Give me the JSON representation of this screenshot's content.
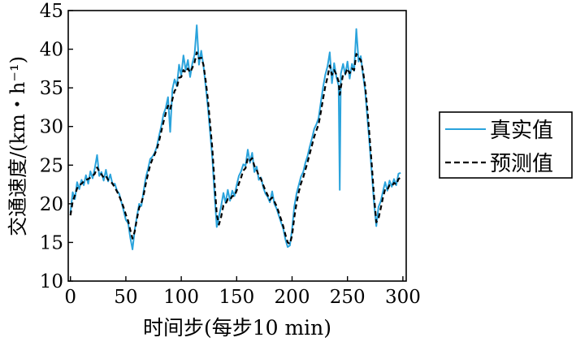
{
  "chart_data": {
    "type": "line",
    "xlabel": "时间步(每步10 min)",
    "ylabel": "交通速度/(km・h⁻¹)",
    "xlim": [
      -2,
      303
    ],
    "ylim": [
      10,
      45
    ],
    "xticks": [
      0,
      50,
      100,
      150,
      200,
      250,
      300
    ],
    "yticks": [
      10,
      15,
      20,
      25,
      30,
      35,
      40,
      45
    ],
    "legend_position": "right",
    "series": [
      {
        "name": "真实值",
        "color": "#2aa3dc",
        "style": "solid",
        "points": [
          [
            0,
            18.8
          ],
          [
            2,
            21.5
          ],
          [
            4,
            20.6
          ],
          [
            6,
            22.8
          ],
          [
            8,
            21.9
          ],
          [
            10,
            23.1
          ],
          [
            12,
            22.4
          ],
          [
            14,
            23.7
          ],
          [
            16,
            22.6
          ],
          [
            18,
            24.2
          ],
          [
            20,
            23.3
          ],
          [
            22,
            24.6
          ],
          [
            24,
            26.3
          ],
          [
            26,
            23.6
          ],
          [
            28,
            24.1
          ],
          [
            30,
            23.0
          ],
          [
            32,
            24.4
          ],
          [
            34,
            22.9
          ],
          [
            36,
            23.8
          ],
          [
            38,
            22.5
          ],
          [
            40,
            22.6
          ],
          [
            42,
            21.7
          ],
          [
            44,
            21.3
          ],
          [
            46,
            20.2
          ],
          [
            48,
            19.1
          ],
          [
            50,
            17.9
          ],
          [
            52,
            17.5
          ],
          [
            54,
            15.6
          ],
          [
            56,
            14.1
          ],
          [
            58,
            16.6
          ],
          [
            60,
            18.4
          ],
          [
            62,
            20.0
          ],
          [
            64,
            19.7
          ],
          [
            66,
            21.6
          ],
          [
            68,
            23.4
          ],
          [
            70,
            24.5
          ],
          [
            72,
            25.8
          ],
          [
            74,
            26.1
          ],
          [
            76,
            26.6
          ],
          [
            78,
            27.4
          ],
          [
            80,
            28.8
          ],
          [
            82,
            30.1
          ],
          [
            84,
            31.6
          ],
          [
            86,
            32.4
          ],
          [
            88,
            33.8
          ],
          [
            90,
            29.3
          ],
          [
            92,
            34.8
          ],
          [
            94,
            36.1
          ],
          [
            96,
            35.2
          ],
          [
            98,
            38.0
          ],
          [
            100,
            36.6
          ],
          [
            102,
            39.2
          ],
          [
            104,
            37.3
          ],
          [
            106,
            38.6
          ],
          [
            108,
            36.4
          ],
          [
            110,
            38.2
          ],
          [
            112,
            39.3
          ],
          [
            114,
            43.1
          ],
          [
            116,
            38.0
          ],
          [
            118,
            39.8
          ],
          [
            120,
            37.9
          ],
          [
            122,
            35.3
          ],
          [
            124,
            32.5
          ],
          [
            126,
            29.3
          ],
          [
            128,
            26.0
          ],
          [
            130,
            21.4
          ],
          [
            132,
            17.0
          ],
          [
            134,
            18.3
          ],
          [
            136,
            19.7
          ],
          [
            138,
            21.4
          ],
          [
            140,
            20.1
          ],
          [
            142,
            21.8
          ],
          [
            144,
            20.4
          ],
          [
            146,
            21.7
          ],
          [
            148,
            21.0
          ],
          [
            150,
            22.4
          ],
          [
            152,
            23.6
          ],
          [
            154,
            24.2
          ],
          [
            156,
            25.1
          ],
          [
            158,
            24.9
          ],
          [
            160,
            27.0
          ],
          [
            162,
            25.3
          ],
          [
            164,
            26.6
          ],
          [
            166,
            24.1
          ],
          [
            168,
            24.8
          ],
          [
            170,
            23.1
          ],
          [
            172,
            23.4
          ],
          [
            174,
            22.1
          ],
          [
            176,
            21.3
          ],
          [
            178,
            20.9
          ],
          [
            180,
            20.2
          ],
          [
            182,
            21.6
          ],
          [
            184,
            20.0
          ],
          [
            186,
            19.4
          ],
          [
            188,
            18.5
          ],
          [
            190,
            17.6
          ],
          [
            192,
            16.8
          ],
          [
            194,
            15.4
          ],
          [
            196,
            14.4
          ],
          [
            198,
            14.6
          ],
          [
            200,
            16.7
          ],
          [
            202,
            19.6
          ],
          [
            204,
            21.3
          ],
          [
            206,
            22.4
          ],
          [
            208,
            23.5
          ],
          [
            210,
            24.1
          ],
          [
            212,
            25.3
          ],
          [
            214,
            26.2
          ],
          [
            216,
            27.4
          ],
          [
            218,
            28.5
          ],
          [
            220,
            29.7
          ],
          [
            222,
            30.3
          ],
          [
            224,
            31.1
          ],
          [
            226,
            33.2
          ],
          [
            228,
            35.1
          ],
          [
            230,
            36.7
          ],
          [
            232,
            37.8
          ],
          [
            234,
            39.6
          ],
          [
            236,
            35.6
          ],
          [
            238,
            38.2
          ],
          [
            240,
            36.4
          ],
          [
            242,
            35.3
          ],
          [
            243,
            21.8
          ],
          [
            244,
            36.8
          ],
          [
            246,
            38.1
          ],
          [
            248,
            36.7
          ],
          [
            250,
            38.4
          ],
          [
            252,
            36.2
          ],
          [
            254,
            38.1
          ],
          [
            256,
            37.2
          ],
          [
            258,
            42.6
          ],
          [
            260,
            38.4
          ],
          [
            262,
            39.1
          ],
          [
            264,
            36.7
          ],
          [
            266,
            34.6
          ],
          [
            268,
            31.0
          ],
          [
            270,
            27.6
          ],
          [
            272,
            23.9
          ],
          [
            274,
            20.1
          ],
          [
            276,
            17.1
          ],
          [
            278,
            19.6
          ],
          [
            280,
            20.3
          ],
          [
            282,
            21.6
          ],
          [
            284,
            22.8
          ],
          [
            286,
            21.7
          ],
          [
            288,
            23.0
          ],
          [
            290,
            22.2
          ],
          [
            292,
            23.2
          ],
          [
            294,
            22.4
          ],
          [
            296,
            23.9
          ],
          [
            298,
            24.0
          ]
        ]
      },
      {
        "name": "预测值",
        "color": "#000000",
        "style": "dashed",
        "points": [
          [
            0,
            18.5
          ],
          [
            2,
            20.3
          ],
          [
            4,
            21.1
          ],
          [
            6,
            22.0
          ],
          [
            8,
            22.4
          ],
          [
            10,
            22.6
          ],
          [
            12,
            22.9
          ],
          [
            14,
            23.1
          ],
          [
            16,
            23.2
          ],
          [
            18,
            23.4
          ],
          [
            20,
            23.6
          ],
          [
            22,
            23.9
          ],
          [
            24,
            24.7
          ],
          [
            26,
            24.2
          ],
          [
            28,
            23.8
          ],
          [
            30,
            23.4
          ],
          [
            32,
            23.6
          ],
          [
            34,
            23.1
          ],
          [
            36,
            22.9
          ],
          [
            38,
            22.6
          ],
          [
            40,
            22.1
          ],
          [
            42,
            21.6
          ],
          [
            44,
            21.0
          ],
          [
            46,
            20.3
          ],
          [
            48,
            19.5
          ],
          [
            50,
            18.6
          ],
          [
            52,
            17.8
          ],
          [
            54,
            16.6
          ],
          [
            56,
            15.5
          ],
          [
            58,
            16.4
          ],
          [
            60,
            18.1
          ],
          [
            62,
            19.5
          ],
          [
            64,
            20.1
          ],
          [
            66,
            21.1
          ],
          [
            68,
            22.6
          ],
          [
            70,
            23.9
          ],
          [
            72,
            25.0
          ],
          [
            74,
            25.8
          ],
          [
            76,
            26.4
          ],
          [
            78,
            27.1
          ],
          [
            80,
            28.1
          ],
          [
            82,
            29.4
          ],
          [
            84,
            30.6
          ],
          [
            86,
            31.7
          ],
          [
            88,
            32.7
          ],
          [
            90,
            32.2
          ],
          [
            92,
            33.5
          ],
          [
            94,
            34.6
          ],
          [
            96,
            35.0
          ],
          [
            98,
            36.3
          ],
          [
            100,
            36.4
          ],
          [
            102,
            37.3
          ],
          [
            104,
            37.0
          ],
          [
            106,
            37.5
          ],
          [
            108,
            37.0
          ],
          [
            110,
            37.6
          ],
          [
            112,
            38.3
          ],
          [
            114,
            39.6
          ],
          [
            116,
            38.8
          ],
          [
            118,
            38.9
          ],
          [
            120,
            38.0
          ],
          [
            122,
            36.0
          ],
          [
            124,
            33.5
          ],
          [
            126,
            30.4
          ],
          [
            128,
            27.2
          ],
          [
            130,
            22.9
          ],
          [
            132,
            18.6
          ],
          [
            134,
            17.3
          ],
          [
            136,
            18.3
          ],
          [
            138,
            19.8
          ],
          [
            140,
            20.0
          ],
          [
            142,
            20.6
          ],
          [
            144,
            20.5
          ],
          [
            146,
            21.0
          ],
          [
            148,
            21.0
          ],
          [
            150,
            21.7
          ],
          [
            152,
            22.6
          ],
          [
            154,
            23.4
          ],
          [
            156,
            24.3
          ],
          [
            158,
            24.6
          ],
          [
            160,
            25.9
          ],
          [
            162,
            25.6
          ],
          [
            164,
            25.9
          ],
          [
            166,
            24.9
          ],
          [
            168,
            24.4
          ],
          [
            170,
            23.6
          ],
          [
            172,
            23.2
          ],
          [
            174,
            22.4
          ],
          [
            176,
            21.7
          ],
          [
            178,
            21.1
          ],
          [
            180,
            20.5
          ],
          [
            182,
            20.8
          ],
          [
            184,
            20.3
          ],
          [
            186,
            19.7
          ],
          [
            188,
            18.9
          ],
          [
            190,
            18.0
          ],
          [
            192,
            17.1
          ],
          [
            194,
            16.0
          ],
          [
            196,
            15.0
          ],
          [
            198,
            14.8
          ],
          [
            200,
            15.9
          ],
          [
            202,
            18.2
          ],
          [
            204,
            20.1
          ],
          [
            206,
            21.5
          ],
          [
            208,
            22.6
          ],
          [
            210,
            23.4
          ],
          [
            212,
            24.4
          ],
          [
            214,
            25.4
          ],
          [
            216,
            26.5
          ],
          [
            218,
            27.6
          ],
          [
            220,
            28.7
          ],
          [
            222,
            29.5
          ],
          [
            224,
            30.3
          ],
          [
            226,
            31.9
          ],
          [
            228,
            33.6
          ],
          [
            230,
            35.2
          ],
          [
            232,
            36.4
          ],
          [
            234,
            37.9
          ],
          [
            236,
            36.7
          ],
          [
            238,
            37.3
          ],
          [
            240,
            36.7
          ],
          [
            242,
            35.8
          ],
          [
            243,
            34.1
          ],
          [
            244,
            35.0
          ],
          [
            246,
            36.8
          ],
          [
            248,
            36.8
          ],
          [
            250,
            37.5
          ],
          [
            252,
            36.9
          ],
          [
            254,
            37.5
          ],
          [
            256,
            37.3
          ],
          [
            258,
            39.4
          ],
          [
            260,
            38.9
          ],
          [
            262,
            38.6
          ],
          [
            264,
            37.2
          ],
          [
            266,
            35.2
          ],
          [
            268,
            32.1
          ],
          [
            270,
            28.6
          ],
          [
            272,
            24.9
          ],
          [
            274,
            21.0
          ],
          [
            276,
            17.6
          ],
          [
            278,
            18.1
          ],
          [
            280,
            19.4
          ],
          [
            282,
            20.8
          ],
          [
            284,
            21.9
          ],
          [
            286,
            21.8
          ],
          [
            288,
            22.4
          ],
          [
            290,
            22.3
          ],
          [
            292,
            22.7
          ],
          [
            294,
            22.5
          ],
          [
            296,
            23.2
          ],
          [
            298,
            23.4
          ]
        ]
      }
    ]
  }
}
